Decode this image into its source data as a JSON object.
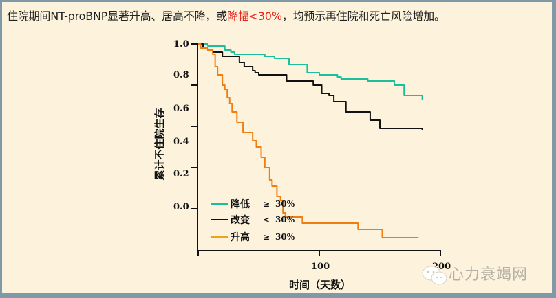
{
  "header": {
    "title_pre": "住院期间NT-proBNP显著升高、居高不降，或",
    "title_highlight": "降幅<30%",
    "title_post": "，均预示再住院和死亡风险增加。",
    "highlight_color": "#e5231b"
  },
  "watermark": {
    "text": "心力衰竭网",
    "icon": "wechat-icon"
  },
  "chart_data": {
    "type": "line",
    "subtype": "kaplan-meier-step",
    "title": "",
    "xlabel": "时间（天数）",
    "ylabel": "累计不住院生存",
    "xlim": [
      0,
      200
    ],
    "ylim": [
      0.0,
      1.0
    ],
    "x_ticks": [
      "100",
      "200"
    ],
    "y_ticks": [
      "1.0",
      "0.8",
      "0.6",
      "0.4",
      "0.2",
      "0.0"
    ],
    "grid": false,
    "legend_position": "lower-left",
    "series": [
      {
        "name": "降低 ≥ 30%",
        "legend_label": "降低",
        "legend_op": "≥",
        "legend_value": "30%",
        "color": "#1cbf9c",
        "points": [
          [
            0,
            1.0
          ],
          [
            8,
            0.99
          ],
          [
            17,
            0.99
          ],
          [
            22,
            0.97
          ],
          [
            27,
            0.96
          ],
          [
            30,
            0.95
          ],
          [
            40,
            0.95
          ],
          [
            55,
            0.94
          ],
          [
            63,
            0.93
          ],
          [
            75,
            0.9
          ],
          [
            90,
            0.86
          ],
          [
            100,
            0.85
          ],
          [
            103,
            0.85
          ],
          [
            115,
            0.84
          ],
          [
            118,
            0.83
          ],
          [
            130,
            0.83
          ],
          [
            140,
            0.82
          ],
          [
            158,
            0.82
          ],
          [
            162,
            0.8
          ],
          [
            170,
            0.75
          ],
          [
            180,
            0.75
          ],
          [
            185,
            0.73
          ]
        ]
      },
      {
        "name": "改变 < 30%",
        "legend_label": "改变",
        "legend_op": "<",
        "legend_value": "30%",
        "color": "#111111",
        "points": [
          [
            0,
            1.0
          ],
          [
            4,
            0.98
          ],
          [
            8,
            0.97
          ],
          [
            12,
            0.96
          ],
          [
            17,
            0.96
          ],
          [
            20,
            0.94
          ],
          [
            33,
            0.94
          ],
          [
            34,
            0.91
          ],
          [
            38,
            0.89
          ],
          [
            42,
            0.89
          ],
          [
            45,
            0.87
          ],
          [
            47,
            0.86
          ],
          [
            50,
            0.85
          ],
          [
            70,
            0.85
          ],
          [
            73,
            0.82
          ],
          [
            93,
            0.82
          ],
          [
            95,
            0.8
          ],
          [
            100,
            0.8
          ],
          [
            102,
            0.76
          ],
          [
            108,
            0.75
          ],
          [
            112,
            0.72
          ],
          [
            120,
            0.72
          ],
          [
            122,
            0.67
          ],
          [
            140,
            0.67
          ],
          [
            142,
            0.63
          ],
          [
            150,
            0.63
          ],
          [
            150,
            0.59
          ],
          [
            160,
            0.59
          ],
          [
            185,
            0.58
          ]
        ]
      },
      {
        "name": "升高 ≥ 30%",
        "legend_label": "升高",
        "legend_op": "≥",
        "legend_value": "30%",
        "color": "#f07d0f",
        "points": [
          [
            0,
            1.0
          ],
          [
            2,
            0.98
          ],
          [
            5,
            0.98
          ],
          [
            8,
            0.97
          ],
          [
            12,
            0.97
          ],
          [
            12,
            0.95
          ],
          [
            14,
            0.89
          ],
          [
            16,
            0.85
          ],
          [
            20,
            0.8
          ],
          [
            22,
            0.78
          ],
          [
            24,
            0.74
          ],
          [
            26,
            0.71
          ],
          [
            28,
            0.67
          ],
          [
            32,
            0.62
          ],
          [
            37,
            0.57
          ],
          [
            42,
            0.57
          ],
          [
            45,
            0.53
          ],
          [
            48,
            0.5
          ],
          [
            52,
            0.45
          ],
          [
            55,
            0.4
          ],
          [
            59,
            0.34
          ],
          [
            61,
            0.31
          ],
          [
            65,
            0.26
          ],
          [
            68,
            0.24
          ],
          [
            70,
            0.18
          ],
          [
            72,
            0.16
          ],
          [
            85,
            0.16
          ],
          [
            86,
            0.13
          ],
          [
            131,
            0.13
          ],
          [
            132,
            0.1
          ],
          [
            151,
            0.1
          ],
          [
            152,
            0.06
          ],
          [
            182,
            0.06
          ]
        ]
      }
    ]
  }
}
